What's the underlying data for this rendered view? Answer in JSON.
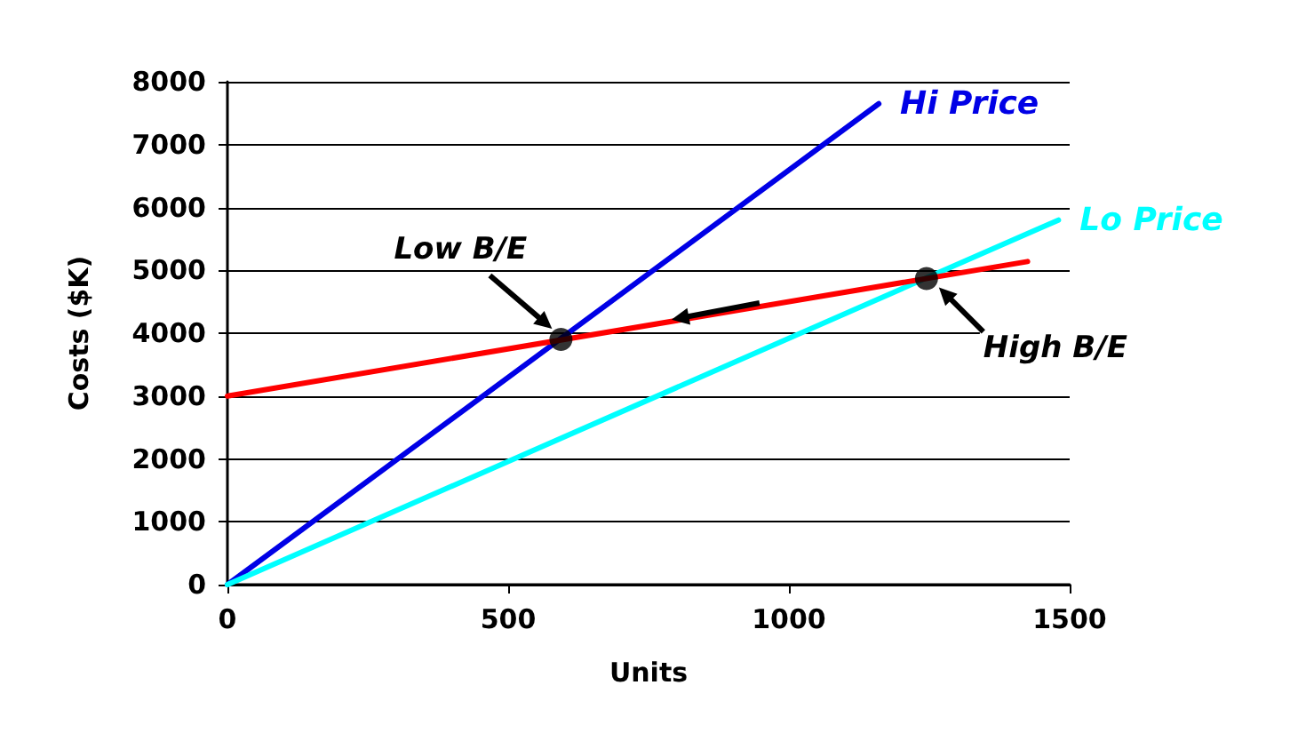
{
  "chart_data": {
    "type": "line",
    "xlabel": "Units",
    "ylabel": "Costs ($K)",
    "xlim": [
      0,
      1500
    ],
    "xticks": [
      0,
      500,
      1000,
      1500
    ],
    "ylim": [
      0,
      8000
    ],
    "yticks": [
      0,
      1000,
      2000,
      3000,
      4000,
      5000,
      6000,
      7000,
      8000
    ],
    "grid": "y",
    "legend": false,
    "marker": "none",
    "line_style": "solid",
    "series": [
      {
        "name": "Hi Price",
        "color": "#0000e6",
        "x": [
          0,
          1160
        ],
        "values": [
          0,
          7650
        ]
      },
      {
        "name": "Lo Price",
        "color": "#00ffff",
        "x": [
          0,
          1480
        ],
        "values": [
          0,
          5800
        ]
      },
      {
        "color": "#ff0000",
        "x": [
          0,
          1425
        ],
        "values": [
          3000,
          5140
        ]
      },
      {
        "type": "scatter",
        "marker": "circle",
        "color": "#000000",
        "x": [
          594,
          1245
        ],
        "values": [
          3900,
          4870
        ]
      }
    ],
    "annotations": [
      {
        "text": "Low B/E",
        "x": 594,
        "y": 3900
      },
      {
        "text": "High B/E",
        "x": 1245,
        "y": 4870
      }
    ]
  }
}
